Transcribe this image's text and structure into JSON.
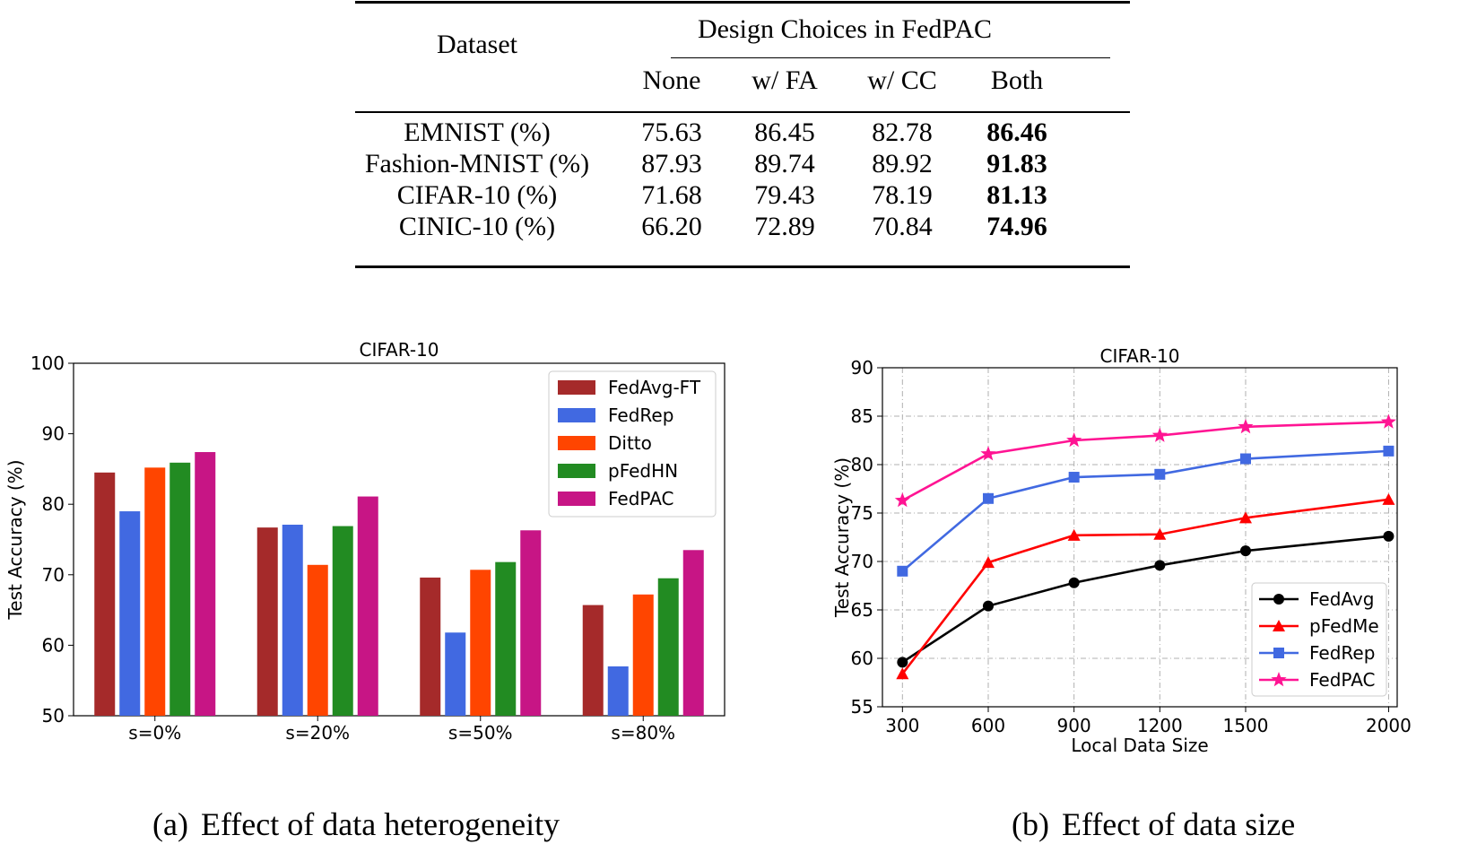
{
  "table": {
    "dataset_header": "Dataset",
    "group_header": "Design Choices in FedPAC",
    "columns": [
      "None",
      "w/ FA",
      "w/ CC",
      "Both"
    ],
    "rows": [
      {
        "dataset": "EMNIST (%)",
        "values": [
          "75.63",
          "86.45",
          "82.78",
          "86.46"
        ]
      },
      {
        "dataset": "Fashion-MNIST (%)",
        "values": [
          "87.93",
          "89.74",
          "89.92",
          "91.83"
        ]
      },
      {
        "dataset": "CIFAR-10 (%)",
        "values": [
          "71.68",
          "79.43",
          "78.19",
          "81.13"
        ]
      },
      {
        "dataset": "CINIC-10 (%)",
        "values": [
          "66.20",
          "72.89",
          "70.84",
          "74.96"
        ]
      }
    ],
    "bold_column": 3
  },
  "chart_data": [
    {
      "type": "bar",
      "title": "CIFAR-10",
      "xlabel": "",
      "ylabel": "Test Accuracy (%)",
      "ylim": [
        50,
        100
      ],
      "yticks": [
        "50",
        "60",
        "70",
        "80",
        "90",
        "100"
      ],
      "categories": [
        "s=0%",
        "s=20%",
        "s=50%",
        "s=80%"
      ],
      "legend_position": "top-right",
      "grid": false,
      "series": [
        {
          "name": "FedAvg-FT",
          "color": "#a52a2a",
          "values": [
            84.5,
            76.7,
            69.6,
            65.7
          ]
        },
        {
          "name": "FedRep",
          "color": "#4169e1",
          "values": [
            79.0,
            77.1,
            61.8,
            57.0
          ]
        },
        {
          "name": "Ditto",
          "color": "#ff4500",
          "values": [
            85.2,
            71.4,
            70.7,
            67.2
          ]
        },
        {
          "name": "pFedHN",
          "color": "#228b22",
          "values": [
            85.9,
            76.9,
            71.8,
            69.5
          ]
        },
        {
          "name": "FedPAC",
          "color": "#c71585",
          "values": [
            87.4,
            81.1,
            76.3,
            73.5
          ]
        }
      ]
    },
    {
      "type": "line",
      "title": "CIFAR-10",
      "xlabel": "Local Data Size",
      "ylabel": "Test Accuracy (%)",
      "ylim": [
        55,
        90
      ],
      "xlim": [
        230,
        2030
      ],
      "x": [
        300,
        600,
        900,
        1200,
        1500,
        2000
      ],
      "xticks": [
        "300",
        "600",
        "900",
        "1200",
        "1500",
        "2000"
      ],
      "yticks": [
        "55",
        "60",
        "65",
        "70",
        "75",
        "80",
        "85",
        "90"
      ],
      "legend_position": "bottom-right",
      "grid": true,
      "series": [
        {
          "name": "FedAvg",
          "color": "#000000",
          "marker": "circle",
          "values": [
            59.6,
            65.4,
            67.8,
            69.6,
            71.1,
            72.6
          ]
        },
        {
          "name": "pFedMe",
          "color": "#ff0000",
          "marker": "triangle",
          "values": [
            58.4,
            69.9,
            72.7,
            72.8,
            74.5,
            76.4
          ]
        },
        {
          "name": "FedRep",
          "color": "#4169e1",
          "marker": "square",
          "values": [
            69.0,
            76.5,
            78.7,
            79.0,
            80.6,
            81.4
          ]
        },
        {
          "name": "FedPAC",
          "color": "#ff1493",
          "marker": "star",
          "values": [
            76.3,
            81.1,
            82.5,
            83.0,
            83.9,
            84.4
          ]
        }
      ]
    }
  ],
  "captions": [
    {
      "label": "(a)",
      "text": "Effect of data heterogeneity"
    },
    {
      "label": "(b)",
      "text": "Effect of data size"
    }
  ]
}
